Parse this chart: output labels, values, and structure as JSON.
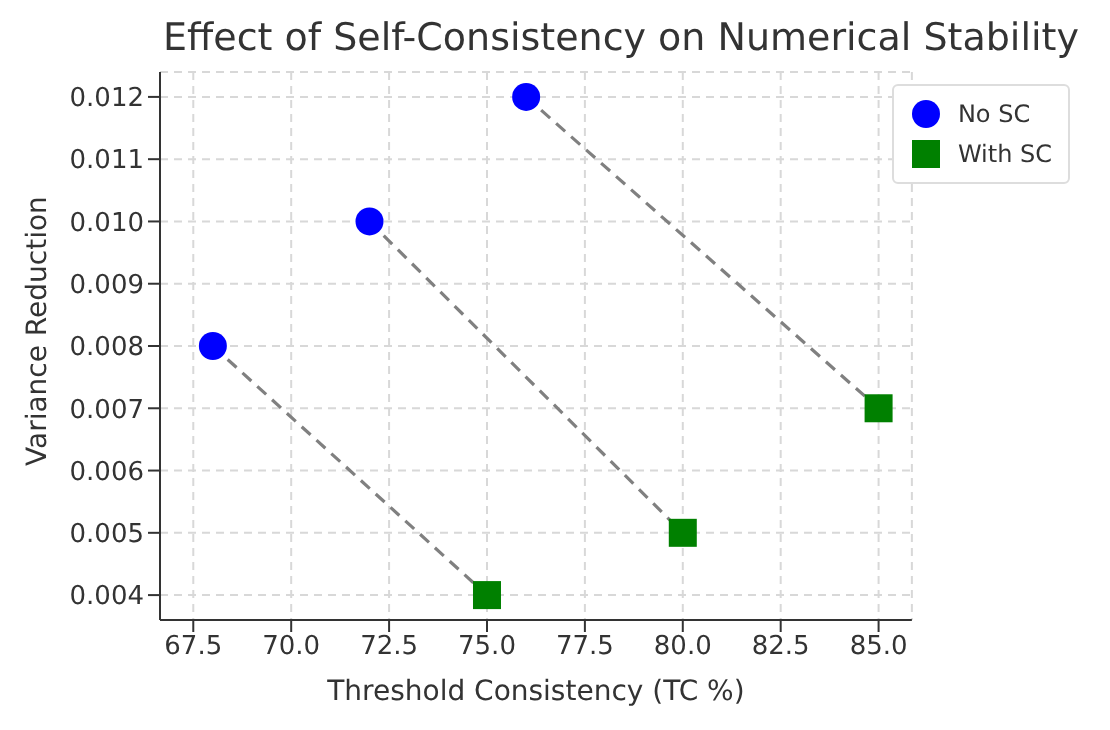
{
  "chart_data": {
    "type": "scatter",
    "title": "Effect of Self-Consistency on Numerical Stability",
    "xlabel": "Threshold Consistency (TC %)",
    "ylabel": "Variance Reduction",
    "xlim": [
      66.65,
      85.85
    ],
    "xticks": [
      {
        "value": 67.5,
        "label": "67.5"
      },
      {
        "value": 70,
        "label": "70.0"
      },
      {
        "value": 72.5,
        "label": "72.5"
      },
      {
        "value": 75,
        "label": "75.0"
      },
      {
        "value": 77.5,
        "label": "77.5"
      },
      {
        "value": 80,
        "label": "80.0"
      },
      {
        "value": 82.5,
        "label": "82.5"
      },
      {
        "value": 85,
        "label": "85.0"
      }
    ],
    "ylim": [
      0.0036,
      0.0124
    ],
    "yticks": [
      {
        "value": 0.004,
        "label": "0.004"
      },
      {
        "value": 0.005,
        "label": "0.005"
      },
      {
        "value": 0.006,
        "label": "0.006"
      },
      {
        "value": 0.007,
        "label": "0.007"
      },
      {
        "value": 0.008,
        "label": "0.008"
      },
      {
        "value": 0.009,
        "label": "0.009"
      },
      {
        "value": 0.01,
        "label": "0.010"
      },
      {
        "value": 0.011,
        "label": "0.011"
      },
      {
        "value": 0.012,
        "label": "0.012"
      }
    ],
    "grid": true,
    "legend": "top right",
    "series": [
      {
        "type": "line",
        "color": "#808080",
        "line_style": "dashed",
        "marker": "none",
        "x": [
          68,
          75
        ],
        "values": [
          0.008,
          0.004
        ]
      },
      {
        "type": "line",
        "color": "#808080",
        "line_style": "dashed",
        "marker": "none",
        "x": [
          72,
          80
        ],
        "values": [
          0.01,
          0.005
        ]
      },
      {
        "type": "line",
        "color": "#808080",
        "line_style": "dashed",
        "marker": "none",
        "x": [
          76,
          85
        ],
        "values": [
          0.012,
          0.007
        ]
      },
      {
        "name": "No SC",
        "color": "#0000ff",
        "marker": "circle",
        "x": [
          68,
          72,
          76
        ],
        "values": [
          0.008,
          0.01,
          0.012
        ]
      },
      {
        "name": "With SC",
        "color": "#008000",
        "marker": "square",
        "x": [
          75,
          80,
          85
        ],
        "values": [
          0.004,
          0.005,
          0.007
        ]
      }
    ]
  }
}
